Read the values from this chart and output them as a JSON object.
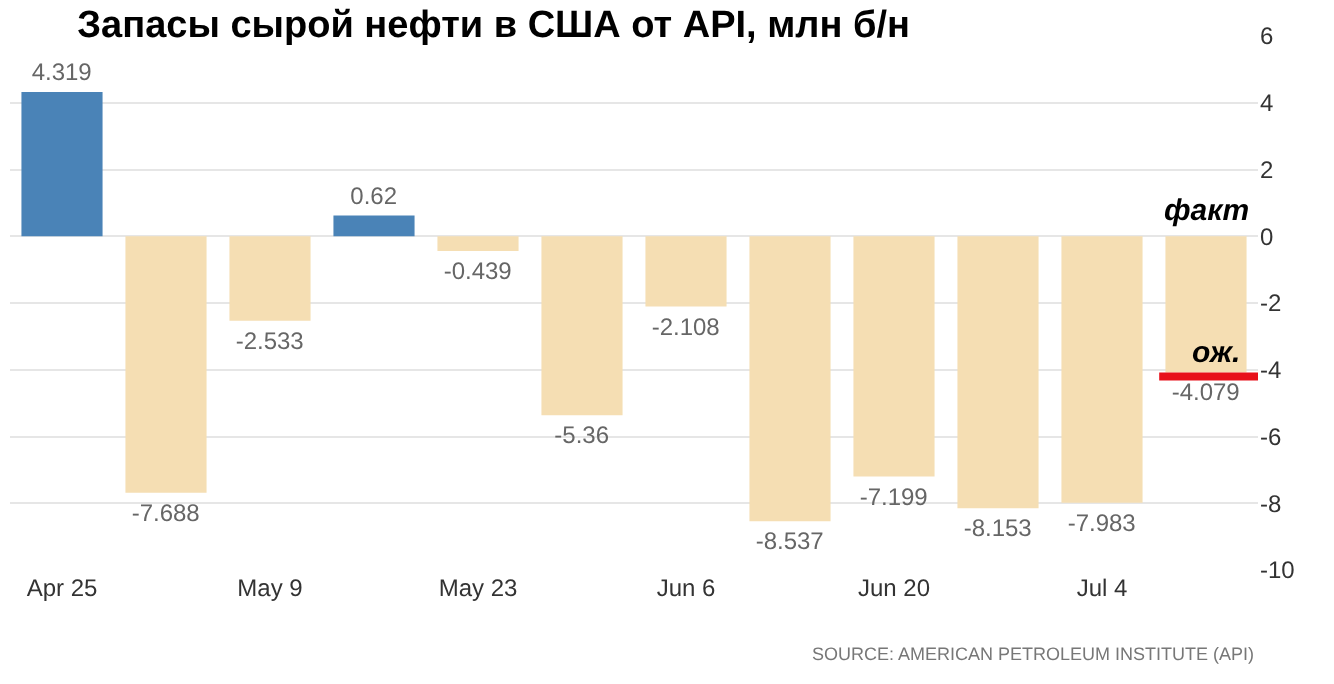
{
  "chart_data": {
    "type": "bar",
    "title": "Запасы сырой нефти в США от API, млн б/н",
    "categories": [
      "Apr 25",
      null,
      "May 9",
      null,
      "May 23",
      null,
      "Jun 6",
      null,
      "Jun 20",
      null,
      "Jul 4",
      null
    ],
    "values": [
      4.319,
      -7.688,
      -2.533,
      0.62,
      -0.439,
      -5.36,
      -2.108,
      -8.537,
      -7.199,
      -8.153,
      -7.983,
      -4.079
    ],
    "colors": [
      "#4a83b7",
      "#f5deb3",
      "#f5deb3",
      "#4a83b7",
      "#f5deb3",
      "#f5deb3",
      "#f5deb3",
      "#f5deb3",
      "#f5deb3",
      "#f5deb3",
      "#f5deb3",
      "#f5deb3"
    ],
    "ylim": [
      -10,
      6
    ],
    "yticks": [
      -10,
      -8,
      -6,
      -4,
      -2,
      0,
      2,
      4,
      6
    ],
    "grid": "y",
    "data_labels": true,
    "ref_lines": [
      {
        "axis": "y",
        "value": -4.2,
        "label": "ож.",
        "color": "#e8101a"
      }
    ],
    "annotations": [
      "факт",
      "SOURCE: AMERICAN PETROLEUM INSTITUTE (API)"
    ]
  }
}
